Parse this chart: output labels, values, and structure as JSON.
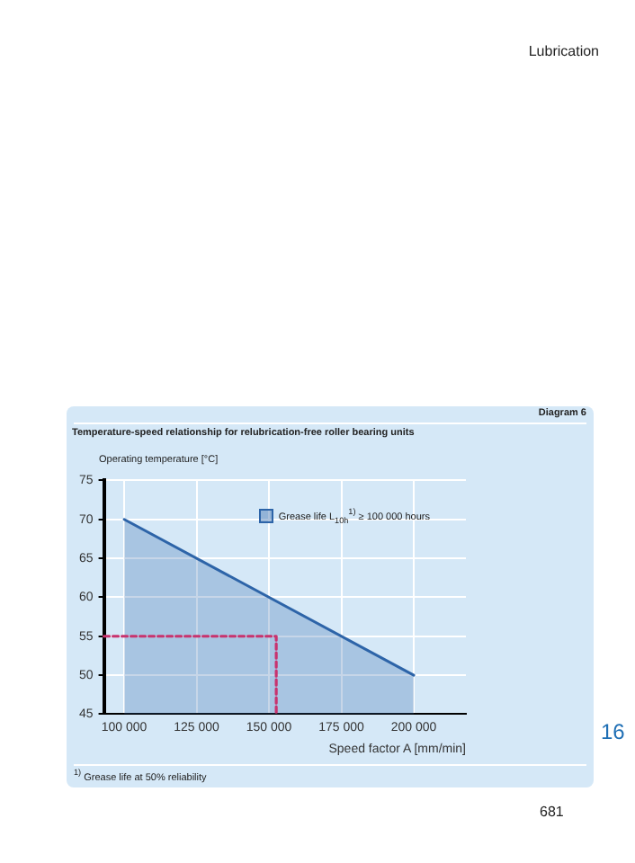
{
  "chart_data": {
    "type": "area",
    "title": "Temperature-speed relationship for relubrication-free roller bearing units",
    "xlabel": "Speed factor A [mm/min]",
    "ylabel": "Operating temperature [°C]",
    "annotations": [
      "Lubrication",
      "Diagram 6",
      "$^{1)}$ Grease life at 50% reliability",
      "16",
      "681"
    ],
    "series": [
      {
        "name": "Grease life L$_{10h}$$^{1)}$ ≥ 100 000 hours",
        "color": "#2d64a8",
        "x": [
          100000,
          200000
        ],
        "values": [
          70,
          50
        ]
      },
      {
        "type": "line",
        "color": "#c8336e",
        "line_style": "dashed",
        "marker": "none",
        "x": [
          93000,
          152500,
          152500
        ],
        "values": [
          55,
          55,
          45
        ]
      }
    ],
    "xlim": [
      93000,
      218000
    ],
    "xticks": [
      {
        "value": 100000,
        "label": "100 000"
      },
      {
        "value": 125000,
        "label": "125 000"
      },
      {
        "value": 150000,
        "label": "150 000"
      },
      {
        "value": 175000,
        "label": "175 000"
      },
      {
        "value": 200000,
        "label": "200 000"
      }
    ],
    "ylim": [
      45,
      75
    ],
    "yticks": [
      45,
      50,
      55,
      60,
      65,
      70,
      75
    ],
    "grid": true,
    "legend": "top right"
  }
}
